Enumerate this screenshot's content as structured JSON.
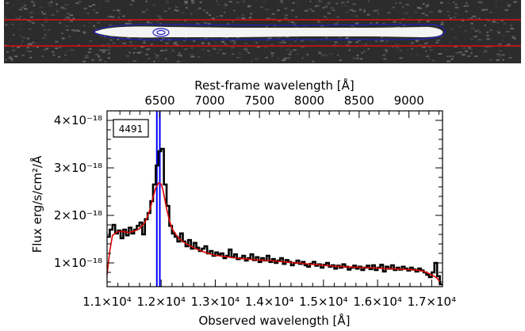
{
  "chart_data": {
    "type": "line",
    "object_label": "4491",
    "xlabel": "Observed wavelength [Å]",
    "x2label": "Rest-frame wavelength [Å]",
    "ylabel": "Flux erg/s/cm²/Å",
    "xlim": [
      11000,
      17200
    ],
    "ylim": [
      5e-19,
      4.2e-18
    ],
    "x_ticks": [
      {
        "value": 11000,
        "label": "1.1×10⁴"
      },
      {
        "value": 12000,
        "label": "1.2×10⁴"
      },
      {
        "value": 13000,
        "label": "1.3×10⁴"
      },
      {
        "value": 14000,
        "label": "1.4×10⁴"
      },
      {
        "value": 15000,
        "label": "1.5×10⁴"
      },
      {
        "value": 16000,
        "label": "1.6×10⁴"
      },
      {
        "value": 17000,
        "label": "1.7×10⁴"
      }
    ],
    "y_ticks": [
      {
        "value": 1e-18,
        "label": "1×10⁻¹⁸"
      },
      {
        "value": 2e-18,
        "label": "2×10⁻¹⁸"
      },
      {
        "value": 3e-18,
        "label": "3×10⁻¹⁸"
      },
      {
        "value": 4e-18,
        "label": "4×10⁻¹⁸"
      }
    ],
    "rest_ticks": [
      {
        "value": 6500,
        "label": "6500"
      },
      {
        "value": 7000,
        "label": "7000"
      },
      {
        "value": 7500,
        "label": "7500"
      },
      {
        "value": 8000,
        "label": "8000"
      },
      {
        "value": 8500,
        "label": "8500"
      },
      {
        "value": 9000,
        "label": "9000"
      }
    ],
    "rest_to_observed_factor": 1.8422,
    "vertical_lines": [
      {
        "x": 11920,
        "color": "#0000ff"
      },
      {
        "x": 11975,
        "color": "#0000ff"
      }
    ],
    "series": [
      {
        "style": "step",
        "color": "#000000",
        "x": [
          11000,
          11050,
          11100,
          11150,
          11200,
          11250,
          11300,
          11350,
          11400,
          11450,
          11500,
          11550,
          11600,
          11650,
          11700,
          11750,
          11800,
          11850,
          11900,
          11950,
          12000,
          12050,
          12100,
          12150,
          12200,
          12250,
          12300,
          12350,
          12400,
          12450,
          12500,
          12550,
          12600,
          12650,
          12700,
          12750,
          12800,
          12850,
          12900,
          12950,
          13000,
          13050,
          13100,
          13150,
          13200,
          13250,
          13300,
          13350,
          13400,
          13450,
          13500,
          13550,
          13600,
          13650,
          13700,
          13750,
          13800,
          13850,
          13900,
          13950,
          14000,
          14050,
          14100,
          14150,
          14200,
          14250,
          14300,
          14350,
          14400,
          14450,
          14500,
          14550,
          14600,
          14650,
          14700,
          14750,
          14800,
          14850,
          14900,
          14950,
          15000,
          15050,
          15100,
          15150,
          15200,
          15250,
          15300,
          15350,
          15400,
          15450,
          15500,
          15550,
          15600,
          15650,
          15700,
          15750,
          15800,
          15850,
          15900,
          15950,
          16000,
          16050,
          16100,
          16150,
          16200,
          16250,
          16300,
          16350,
          16400,
          16450,
          16500,
          16550,
          16600,
          16650,
          16700,
          16750,
          16800,
          16850,
          16900,
          16950,
          17000,
          17050,
          17100,
          17150
        ],
        "y": [
          1.55e-18,
          1.7e-18,
          1.8e-18,
          1.62e-18,
          1.68e-18,
          1.52e-18,
          1.7e-18,
          1.58e-18,
          1.74e-18,
          1.62e-18,
          1.7e-18,
          1.78e-18,
          1.85e-18,
          1.6e-18,
          1.92e-18,
          2.05e-18,
          2.3e-18,
          2.65e-18,
          3.05e-18,
          3.35e-18,
          3.4e-18,
          2.65e-18,
          2.2e-18,
          1.78e-18,
          1.62e-18,
          1.55e-18,
          1.45e-18,
          1.62e-18,
          1.45e-18,
          1.35e-18,
          1.48e-18,
          1.3e-18,
          1.42e-18,
          1.32e-18,
          1.25e-18,
          1.3e-18,
          1.35e-18,
          1.2e-18,
          1.25e-18,
          1.15e-18,
          1.22e-18,
          1.18e-18,
          1.2e-18,
          1.1e-18,
          1.15e-18,
          1.28e-18,
          1.12e-18,
          1.18e-18,
          1.08e-18,
          1.1e-18,
          1.15e-18,
          1.05e-18,
          1.1e-18,
          1.18e-18,
          1.06e-18,
          1.12e-18,
          1.02e-18,
          1.1e-18,
          1.05e-18,
          1.15e-18,
          1.02e-18,
          1.08e-18,
          1e-18,
          1.05e-18,
          1.1e-18,
          9.8e-19,
          1.06e-18,
          1.02e-18,
          9.5e-19,
          1e-18,
          1.05e-18,
          9.8e-19,
          1.02e-18,
          9.5e-19,
          9.2e-19,
          9.8e-19,
          1.02e-18,
          9.4e-19,
          9.7e-19,
          9e-19,
          9.6e-19,
          1e-18,
          9.2e-19,
          9.5e-19,
          8.8e-19,
          9.4e-19,
          9e-19,
          9.7e-19,
          9.2e-19,
          8.6e-19,
          9e-19,
          9.4e-19,
          8.8e-19,
          9.2e-19,
          8.5e-19,
          9e-19,
          9.4e-19,
          8.7e-19,
          9.5e-19,
          8.5e-19,
          9e-19,
          9.6e-19,
          8.2e-19,
          9.2e-19,
          8.8e-19,
          9.5e-19,
          8.5e-19,
          9e-19,
          8.6e-19,
          9.2e-19,
          8.8e-19,
          8.4e-19,
          9e-19,
          8.6e-19,
          8.2e-19,
          8.8e-19,
          8.4e-19,
          8e-19,
          7.5e-19,
          7e-19,
          8e-19,
          1e-18,
          7.2e-19,
          5.5e-19
        ]
      },
      {
        "style": "smooth",
        "color": "#dd0000",
        "x": [
          11000,
          11050,
          11100,
          11200,
          11300,
          11400,
          11500,
          11600,
          11700,
          11750,
          11800,
          11850,
          11900,
          11950,
          12000,
          12030,
          12060,
          12100,
          12150,
          12200,
          12300,
          12400,
          12500,
          12600,
          12700,
          12800,
          12900,
          13000,
          13200,
          13400,
          13600,
          13800,
          14000,
          14200,
          14400,
          14600,
          14800,
          15000,
          15200,
          15400,
          15600,
          15800,
          16000,
          16200,
          16400,
          16600,
          16800,
          16900,
          17000,
          17100,
          17150
        ],
        "y": [
          7.5e-19,
          1.25e-18,
          1.58e-18,
          1.66e-18,
          1.66e-18,
          1.64e-18,
          1.67e-18,
          1.72e-18,
          1.85e-18,
          1.98e-18,
          2.15e-18,
          2.38e-18,
          2.58e-18,
          2.68e-18,
          2.66e-18,
          2.55e-18,
          2.38e-18,
          2.15e-18,
          1.9e-18,
          1.72e-18,
          1.55e-18,
          1.45e-18,
          1.38e-18,
          1.32e-18,
          1.27e-18,
          1.23e-18,
          1.19e-18,
          1.16e-18,
          1.13e-18,
          1.1e-18,
          1.08e-18,
          1.06e-18,
          1.05e-18,
          1.03e-18,
          1.01e-18,
          9.9e-19,
          9.7e-19,
          9.5e-19,
          9.3e-19,
          9.2e-19,
          9.1e-19,
          9e-19,
          8.9e-19,
          8.8e-19,
          8.7e-19,
          8.6e-19,
          8.4e-19,
          8e-19,
          7.5e-19,
          6.8e-19,
          6e-19
        ]
      }
    ]
  }
}
